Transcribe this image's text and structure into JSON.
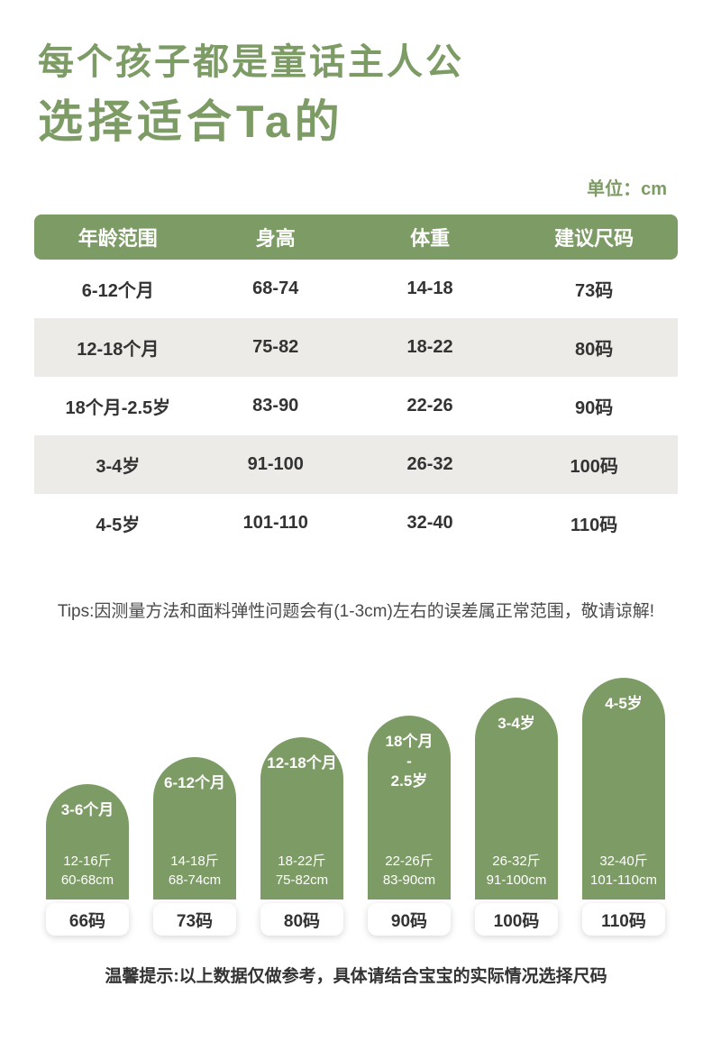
{
  "header": {
    "title_line1": "每个孩子都是童话主人公",
    "title_line2": "选择适合Ta的",
    "unit_label": "单位：cm"
  },
  "table": {
    "headers": [
      "年龄范围",
      "身高",
      "体重",
      "建议尺码"
    ],
    "rows": [
      [
        "6-12个月",
        "68-74",
        "14-18",
        "73码"
      ],
      [
        "12-18个月",
        "75-82",
        "18-22",
        "80码"
      ],
      [
        "18个月-2.5岁",
        "83-90",
        "22-26",
        "90码"
      ],
      [
        "3-4岁",
        "91-100",
        "26-32",
        "100码"
      ],
      [
        "4-5岁",
        "101-110",
        "32-40",
        "110码"
      ]
    ]
  },
  "notes": {
    "tips": "Tips:因测量方法和面料弹性问题会有(1-3cm)左右的误差属正常范围，敬请谅解!",
    "footer": "温馨提示:以上数据仅做参考，具体请结合宝宝的实际情况选择尺码"
  },
  "chart_data": {
    "type": "bar",
    "title": "",
    "categories": [
      "3-6个月",
      "6-12个月",
      "12-18个月",
      "18个月-2.5岁",
      "3-4岁",
      "4-5岁"
    ],
    "values": [
      66,
      73,
      80,
      90,
      100,
      110
    ],
    "ylabel": "",
    "xlabel": "",
    "legend": "none",
    "bars": [
      {
        "age_label": "3-6个月",
        "weight": "12-16斤",
        "height": "60-68cm",
        "size": "66码"
      },
      {
        "age_label": "6-12个月",
        "weight": "14-18斤",
        "height": "68-74cm",
        "size": "73码"
      },
      {
        "age_label": "12-18个月",
        "weight": "18-22斤",
        "height": "75-82cm",
        "size": "80码"
      },
      {
        "age_label": "18个月\n-\n2.5岁",
        "weight": "22-26斤",
        "height": "83-90cm",
        "size": "90码"
      },
      {
        "age_label": "3-4岁",
        "weight": "26-32斤",
        "height": "91-100cm",
        "size": "100码"
      },
      {
        "age_label": "4-5岁",
        "weight": "32-40斤",
        "height": "101-110cm",
        "size": "110码"
      }
    ]
  },
  "colors": {
    "accent_green": "#7D9B64",
    "row_alt": "#ECEBE7",
    "text_dark": "#333333"
  }
}
